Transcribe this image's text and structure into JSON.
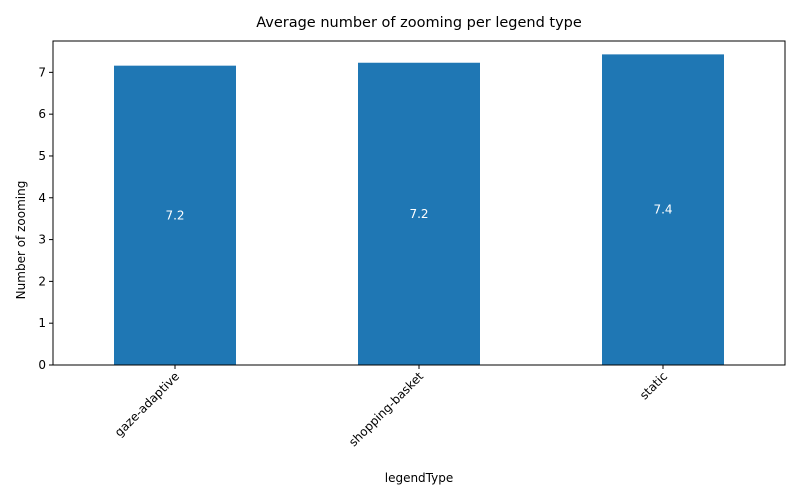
{
  "chart_data": {
    "type": "bar",
    "title": "Average number of zooming per legend type",
    "xlabel": "legendType",
    "ylabel": "Number of zooming",
    "categories": [
      "gaze-adaptive",
      "shopping-basket",
      "static"
    ],
    "values": [
      7.16,
      7.23,
      7.43
    ],
    "data_labels": [
      "7.2",
      "7.2",
      "7.4"
    ],
    "ylim": [
      0,
      7.75
    ],
    "yticks": [
      0,
      1,
      2,
      3,
      4,
      5,
      6,
      7
    ],
    "xtick_rotation": 45,
    "bar_color": "#1f77b4",
    "data_label_color": "#ffffff",
    "grid": false,
    "legend": "none"
  }
}
